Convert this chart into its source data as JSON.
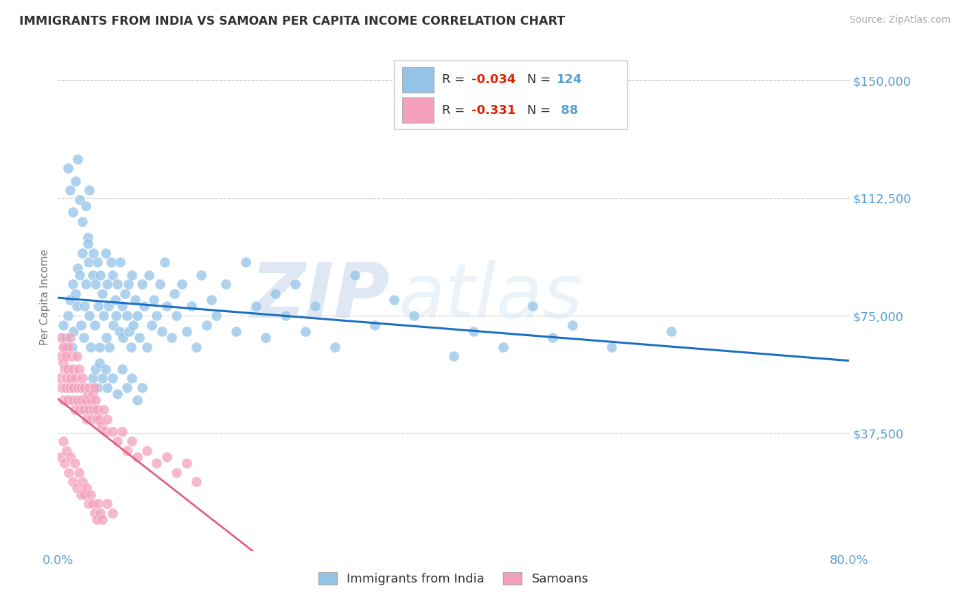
{
  "title": "IMMIGRANTS FROM INDIA VS SAMOAN PER CAPITA INCOME CORRELATION CHART",
  "source_text": "Source: ZipAtlas.com",
  "ylabel": "Per Capita Income",
  "xlim": [
    0.0,
    0.8
  ],
  "ylim": [
    0,
    162000
  ],
  "yticks": [
    0,
    37500,
    75000,
    112500,
    150000
  ],
  "ytick_labels": [
    "",
    "$37,500",
    "$75,000",
    "$112,500",
    "$150,000"
  ],
  "xticks": [
    0.0,
    0.1,
    0.2,
    0.3,
    0.4,
    0.5,
    0.6,
    0.7,
    0.8
  ],
  "xtick_labels": [
    "0.0%",
    "",
    "",
    "",
    "",
    "",
    "",
    "",
    "80.0%"
  ],
  "color_india": "#93c4e8",
  "color_samoan": "#f4a0bc",
  "trendline_india_color": "#1a6fc4",
  "trendline_samoan_solid_color": "#e0607a",
  "trendline_samoan_dash_color": "#e8b0c0",
  "background_color": "#ffffff",
  "grid_color": "#cccccc",
  "legend_R_india": "-0.034",
  "legend_N_india": "124",
  "legend_R_samoan": "-0.331",
  "legend_N_samoan": "88",
  "legend_label_india": "Immigrants from India",
  "legend_label_samoan": "Samoans",
  "watermark": "ZIPatlas",
  "title_color": "#333333",
  "tick_color": "#5a9fd4",
  "india_x": [
    0.005,
    0.008,
    0.01,
    0.012,
    0.014,
    0.015,
    0.016,
    0.018,
    0.019,
    0.02,
    0.022,
    0.023,
    0.025,
    0.026,
    0.027,
    0.028,
    0.03,
    0.031,
    0.032,
    0.033,
    0.035,
    0.036,
    0.037,
    0.038,
    0.04,
    0.041,
    0.042,
    0.043,
    0.045,
    0.046,
    0.048,
    0.049,
    0.05,
    0.051,
    0.052,
    0.054,
    0.055,
    0.056,
    0.058,
    0.059,
    0.06,
    0.062,
    0.063,
    0.065,
    0.066,
    0.068,
    0.07,
    0.071,
    0.072,
    0.074,
    0.075,
    0.076,
    0.078,
    0.08,
    0.082,
    0.085,
    0.087,
    0.09,
    0.092,
    0.095,
    0.097,
    0.1,
    0.103,
    0.105,
    0.108,
    0.11,
    0.115,
    0.118,
    0.12,
    0.125,
    0.13,
    0.135,
    0.14,
    0.145,
    0.15,
    0.155,
    0.16,
    0.17,
    0.18,
    0.19,
    0.2,
    0.21,
    0.22,
    0.23,
    0.24,
    0.25,
    0.26,
    0.28,
    0.3,
    0.32,
    0.34,
    0.36,
    0.4,
    0.42,
    0.45,
    0.48,
    0.5,
    0.52,
    0.56,
    0.62,
    0.01,
    0.012,
    0.015,
    0.018,
    0.02,
    0.022,
    0.025,
    0.028,
    0.03,
    0.032,
    0.035,
    0.038,
    0.04,
    0.042,
    0.045,
    0.048,
    0.05,
    0.055,
    0.06,
    0.065,
    0.07,
    0.075,
    0.08,
    0.085
  ],
  "india_y": [
    72000,
    68000,
    75000,
    80000,
    65000,
    85000,
    70000,
    82000,
    78000,
    90000,
    88000,
    72000,
    95000,
    68000,
    78000,
    85000,
    100000,
    92000,
    75000,
    65000,
    88000,
    95000,
    72000,
    85000,
    92000,
    78000,
    65000,
    88000,
    82000,
    75000,
    95000,
    68000,
    85000,
    78000,
    65000,
    92000,
    88000,
    72000,
    80000,
    75000,
    85000,
    70000,
    92000,
    78000,
    68000,
    82000,
    75000,
    85000,
    70000,
    65000,
    88000,
    72000,
    80000,
    75000,
    68000,
    85000,
    78000,
    65000,
    88000,
    72000,
    80000,
    75000,
    85000,
    70000,
    92000,
    78000,
    68000,
    82000,
    75000,
    85000,
    70000,
    78000,
    65000,
    88000,
    72000,
    80000,
    75000,
    85000,
    70000,
    92000,
    78000,
    68000,
    82000,
    75000,
    85000,
    70000,
    78000,
    65000,
    88000,
    72000,
    80000,
    75000,
    62000,
    70000,
    65000,
    78000,
    68000,
    72000,
    65000,
    70000,
    122000,
    115000,
    108000,
    118000,
    125000,
    112000,
    105000,
    110000,
    98000,
    115000,
    55000,
    58000,
    52000,
    60000,
    55000,
    58000,
    52000,
    55000,
    50000,
    58000,
    52000,
    55000,
    48000,
    52000
  ],
  "samoan_x": [
    0.002,
    0.003,
    0.004,
    0.005,
    0.006,
    0.007,
    0.008,
    0.008,
    0.009,
    0.01,
    0.01,
    0.011,
    0.012,
    0.013,
    0.014,
    0.015,
    0.015,
    0.016,
    0.017,
    0.018,
    0.019,
    0.02,
    0.02,
    0.021,
    0.022,
    0.023,
    0.024,
    0.025,
    0.026,
    0.027,
    0.028,
    0.029,
    0.03,
    0.031,
    0.032,
    0.033,
    0.034,
    0.035,
    0.036,
    0.037,
    0.038,
    0.039,
    0.04,
    0.042,
    0.044,
    0.046,
    0.048,
    0.05,
    0.055,
    0.06,
    0.065,
    0.07,
    0.075,
    0.08,
    0.09,
    0.1,
    0.11,
    0.12,
    0.13,
    0.14,
    0.003,
    0.005,
    0.007,
    0.009,
    0.011,
    0.013,
    0.015,
    0.017,
    0.019,
    0.021,
    0.023,
    0.025,
    0.027,
    0.029,
    0.031,
    0.033,
    0.035,
    0.037,
    0.039,
    0.041,
    0.043,
    0.045,
    0.05,
    0.055,
    0.003,
    0.005,
    0.008,
    0.012
  ],
  "samoan_y": [
    55000,
    62000,
    52000,
    60000,
    48000,
    58000,
    52000,
    65000,
    55000,
    58000,
    48000,
    65000,
    52000,
    55000,
    62000,
    48000,
    58000,
    52000,
    45000,
    55000,
    62000,
    48000,
    52000,
    58000,
    45000,
    52000,
    48000,
    55000,
    45000,
    52000,
    48000,
    42000,
    50000,
    45000,
    52000,
    48000,
    42000,
    50000,
    45000,
    52000,
    48000,
    42000,
    45000,
    42000,
    40000,
    45000,
    38000,
    42000,
    38000,
    35000,
    38000,
    32000,
    35000,
    30000,
    32000,
    28000,
    30000,
    25000,
    28000,
    22000,
    30000,
    35000,
    28000,
    32000,
    25000,
    30000,
    22000,
    28000,
    20000,
    25000,
    18000,
    22000,
    18000,
    20000,
    15000,
    18000,
    15000,
    12000,
    10000,
    15000,
    12000,
    10000,
    15000,
    12000,
    68000,
    65000,
    62000,
    68000
  ]
}
